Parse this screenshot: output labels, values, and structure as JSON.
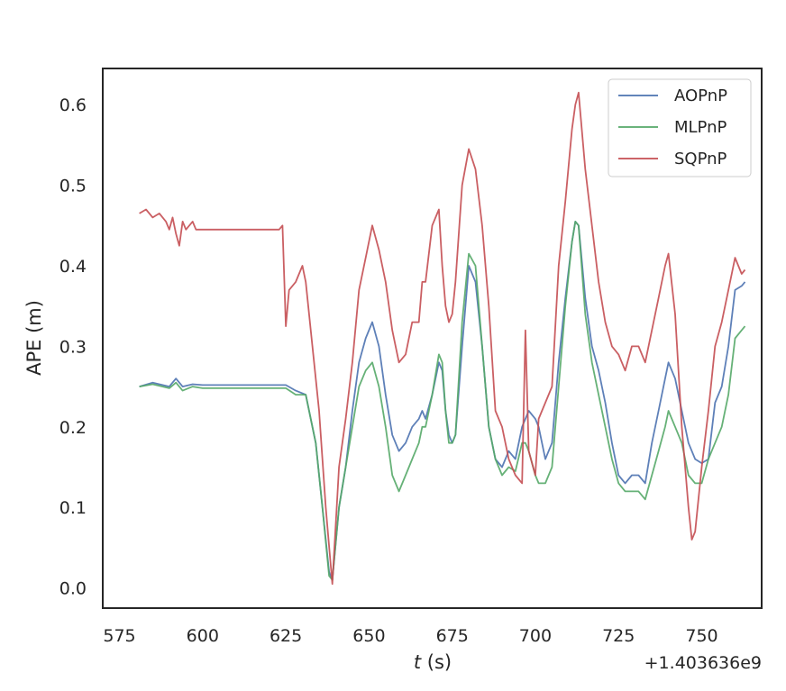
{
  "chart_data": {
    "type": "line",
    "xlabel_var": "t",
    "xlabel_unit": " (s)",
    "ylabel": "APE (m)",
    "x_offset_label": "+1.403636e9",
    "xlim": [
      570,
      768
    ],
    "ylim": [
      -0.025,
      0.645
    ],
    "xticks": [
      575,
      600,
      625,
      650,
      675,
      700,
      725,
      750
    ],
    "yticks": [
      0.0,
      0.1,
      0.2,
      0.3,
      0.4,
      0.5,
      0.6
    ],
    "ytick_labels": [
      "0.0",
      "0.1",
      "0.2",
      "0.3",
      "0.4",
      "0.5",
      "0.6"
    ],
    "grid": false,
    "legend_position": "top-right",
    "series": [
      {
        "name": "AOPnP",
        "color": "#4c72b0",
        "points": [
          [
            581,
            0.25
          ],
          [
            585,
            0.255
          ],
          [
            590,
            0.25
          ],
          [
            592,
            0.26
          ],
          [
            594,
            0.25
          ],
          [
            597,
            0.253
          ],
          [
            600,
            0.252
          ],
          [
            610,
            0.252
          ],
          [
            620,
            0.252
          ],
          [
            625,
            0.252
          ],
          [
            628,
            0.245
          ],
          [
            631,
            0.24
          ],
          [
            634,
            0.18
          ],
          [
            636,
            0.1
          ],
          [
            638,
            0.02
          ],
          [
            639,
            0.01
          ],
          [
            641,
            0.1
          ],
          [
            643,
            0.15
          ],
          [
            645,
            0.22
          ],
          [
            647,
            0.28
          ],
          [
            649,
            0.31
          ],
          [
            651,
            0.33
          ],
          [
            653,
            0.3
          ],
          [
            655,
            0.24
          ],
          [
            657,
            0.19
          ],
          [
            659,
            0.17
          ],
          [
            661,
            0.18
          ],
          [
            663,
            0.2
          ],
          [
            665,
            0.21
          ],
          [
            666,
            0.22
          ],
          [
            667,
            0.21
          ],
          [
            669,
            0.24
          ],
          [
            671,
            0.28
          ],
          [
            672,
            0.27
          ],
          [
            673,
            0.22
          ],
          [
            674,
            0.19
          ],
          [
            675,
            0.18
          ],
          [
            676,
            0.19
          ],
          [
            678,
            0.3
          ],
          [
            680,
            0.4
          ],
          [
            682,
            0.38
          ],
          [
            684,
            0.3
          ],
          [
            686,
            0.2
          ],
          [
            688,
            0.16
          ],
          [
            690,
            0.15
          ],
          [
            692,
            0.17
          ],
          [
            694,
            0.16
          ],
          [
            696,
            0.2
          ],
          [
            698,
            0.22
          ],
          [
            700,
            0.21
          ],
          [
            701,
            0.2
          ],
          [
            703,
            0.16
          ],
          [
            705,
            0.18
          ],
          [
            707,
            0.28
          ],
          [
            709,
            0.36
          ],
          [
            711,
            0.43
          ],
          [
            712,
            0.455
          ],
          [
            713,
            0.45
          ],
          [
            715,
            0.36
          ],
          [
            717,
            0.3
          ],
          [
            719,
            0.27
          ],
          [
            721,
            0.23
          ],
          [
            723,
            0.18
          ],
          [
            725,
            0.14
          ],
          [
            727,
            0.13
          ],
          [
            729,
            0.14
          ],
          [
            731,
            0.14
          ],
          [
            733,
            0.13
          ],
          [
            735,
            0.18
          ],
          [
            737,
            0.22
          ],
          [
            739,
            0.26
          ],
          [
            740,
            0.28
          ],
          [
            742,
            0.26
          ],
          [
            744,
            0.22
          ],
          [
            746,
            0.18
          ],
          [
            748,
            0.16
          ],
          [
            750,
            0.155
          ],
          [
            752,
            0.16
          ],
          [
            754,
            0.23
          ],
          [
            756,
            0.25
          ],
          [
            758,
            0.3
          ],
          [
            760,
            0.37
          ],
          [
            762,
            0.375
          ],
          [
            763,
            0.38
          ]
        ]
      },
      {
        "name": "MLPnP",
        "color": "#55a868",
        "points": [
          [
            581,
            0.25
          ],
          [
            585,
            0.253
          ],
          [
            590,
            0.248
          ],
          [
            592,
            0.255
          ],
          [
            594,
            0.245
          ],
          [
            597,
            0.25
          ],
          [
            600,
            0.248
          ],
          [
            610,
            0.248
          ],
          [
            620,
            0.248
          ],
          [
            625,
            0.248
          ],
          [
            628,
            0.24
          ],
          [
            631,
            0.24
          ],
          [
            634,
            0.18
          ],
          [
            636,
            0.1
          ],
          [
            638,
            0.015
          ],
          [
            639,
            0.01
          ],
          [
            641,
            0.1
          ],
          [
            643,
            0.15
          ],
          [
            645,
            0.2
          ],
          [
            647,
            0.25
          ],
          [
            649,
            0.27
          ],
          [
            651,
            0.28
          ],
          [
            653,
            0.25
          ],
          [
            655,
            0.2
          ],
          [
            657,
            0.14
          ],
          [
            659,
            0.12
          ],
          [
            661,
            0.14
          ],
          [
            663,
            0.16
          ],
          [
            665,
            0.18
          ],
          [
            666,
            0.2
          ],
          [
            667,
            0.2
          ],
          [
            669,
            0.24
          ],
          [
            671,
            0.29
          ],
          [
            672,
            0.28
          ],
          [
            673,
            0.22
          ],
          [
            674,
            0.18
          ],
          [
            675,
            0.18
          ],
          [
            676,
            0.19
          ],
          [
            678,
            0.33
          ],
          [
            680,
            0.415
          ],
          [
            682,
            0.4
          ],
          [
            684,
            0.3
          ],
          [
            686,
            0.2
          ],
          [
            688,
            0.16
          ],
          [
            690,
            0.14
          ],
          [
            692,
            0.15
          ],
          [
            694,
            0.145
          ],
          [
            696,
            0.18
          ],
          [
            697,
            0.18
          ],
          [
            698,
            0.17
          ],
          [
            700,
            0.14
          ],
          [
            701,
            0.13
          ],
          [
            703,
            0.13
          ],
          [
            705,
            0.15
          ],
          [
            707,
            0.25
          ],
          [
            709,
            0.35
          ],
          [
            711,
            0.43
          ],
          [
            712,
            0.455
          ],
          [
            713,
            0.45
          ],
          [
            715,
            0.34
          ],
          [
            717,
            0.28
          ],
          [
            719,
            0.24
          ],
          [
            721,
            0.2
          ],
          [
            723,
            0.16
          ],
          [
            725,
            0.13
          ],
          [
            727,
            0.12
          ],
          [
            729,
            0.12
          ],
          [
            731,
            0.12
          ],
          [
            733,
            0.11
          ],
          [
            735,
            0.14
          ],
          [
            737,
            0.17
          ],
          [
            739,
            0.2
          ],
          [
            740,
            0.22
          ],
          [
            742,
            0.2
          ],
          [
            744,
            0.18
          ],
          [
            746,
            0.14
          ],
          [
            748,
            0.13
          ],
          [
            750,
            0.13
          ],
          [
            752,
            0.16
          ],
          [
            754,
            0.18
          ],
          [
            756,
            0.2
          ],
          [
            758,
            0.24
          ],
          [
            760,
            0.31
          ],
          [
            762,
            0.32
          ],
          [
            763,
            0.325
          ]
        ]
      },
      {
        "name": "SQPnP",
        "color": "#c44e52",
        "points": [
          [
            581,
            0.465
          ],
          [
            583,
            0.47
          ],
          [
            585,
            0.46
          ],
          [
            587,
            0.465
          ],
          [
            589,
            0.455
          ],
          [
            590,
            0.445
          ],
          [
            591,
            0.46
          ],
          [
            592,
            0.44
          ],
          [
            593,
            0.425
          ],
          [
            594,
            0.455
          ],
          [
            595,
            0.445
          ],
          [
            597,
            0.455
          ],
          [
            598,
            0.445
          ],
          [
            600,
            0.445
          ],
          [
            605,
            0.445
          ],
          [
            610,
            0.445
          ],
          [
            615,
            0.445
          ],
          [
            620,
            0.445
          ],
          [
            623,
            0.445
          ],
          [
            624,
            0.45
          ],
          [
            625,
            0.325
          ],
          [
            626,
            0.37
          ],
          [
            628,
            0.38
          ],
          [
            630,
            0.4
          ],
          [
            631,
            0.38
          ],
          [
            633,
            0.3
          ],
          [
            635,
            0.22
          ],
          [
            637,
            0.1
          ],
          [
            639,
            0.005
          ],
          [
            641,
            0.15
          ],
          [
            643,
            0.21
          ],
          [
            645,
            0.28
          ],
          [
            647,
            0.37
          ],
          [
            649,
            0.41
          ],
          [
            651,
            0.45
          ],
          [
            653,
            0.42
          ],
          [
            655,
            0.38
          ],
          [
            657,
            0.32
          ],
          [
            659,
            0.28
          ],
          [
            661,
            0.29
          ],
          [
            663,
            0.33
          ],
          [
            665,
            0.33
          ],
          [
            666,
            0.38
          ],
          [
            667,
            0.38
          ],
          [
            669,
            0.45
          ],
          [
            671,
            0.47
          ],
          [
            672,
            0.4
          ],
          [
            673,
            0.35
          ],
          [
            674,
            0.33
          ],
          [
            675,
            0.34
          ],
          [
            676,
            0.38
          ],
          [
            678,
            0.5
          ],
          [
            680,
            0.545
          ],
          [
            682,
            0.52
          ],
          [
            684,
            0.45
          ],
          [
            686,
            0.35
          ],
          [
            688,
            0.22
          ],
          [
            690,
            0.2
          ],
          [
            692,
            0.16
          ],
          [
            694,
            0.14
          ],
          [
            696,
            0.13
          ],
          [
            697,
            0.32
          ],
          [
            698,
            0.17
          ],
          [
            700,
            0.14
          ],
          [
            701,
            0.21
          ],
          [
            703,
            0.23
          ],
          [
            705,
            0.25
          ],
          [
            707,
            0.4
          ],
          [
            709,
            0.48
          ],
          [
            711,
            0.57
          ],
          [
            712,
            0.6
          ],
          [
            713,
            0.615
          ],
          [
            715,
            0.52
          ],
          [
            717,
            0.45
          ],
          [
            719,
            0.38
          ],
          [
            721,
            0.33
          ],
          [
            723,
            0.3
          ],
          [
            725,
            0.29
          ],
          [
            727,
            0.27
          ],
          [
            729,
            0.3
          ],
          [
            731,
            0.3
          ],
          [
            733,
            0.28
          ],
          [
            735,
            0.32
          ],
          [
            737,
            0.36
          ],
          [
            739,
            0.4
          ],
          [
            740,
            0.415
          ],
          [
            742,
            0.34
          ],
          [
            744,
            0.2
          ],
          [
            746,
            0.1
          ],
          [
            747,
            0.06
          ],
          [
            748,
            0.07
          ],
          [
            750,
            0.15
          ],
          [
            752,
            0.22
          ],
          [
            754,
            0.3
          ],
          [
            756,
            0.33
          ],
          [
            758,
            0.37
          ],
          [
            760,
            0.41
          ],
          [
            762,
            0.39
          ],
          [
            763,
            0.395
          ]
        ]
      }
    ]
  }
}
